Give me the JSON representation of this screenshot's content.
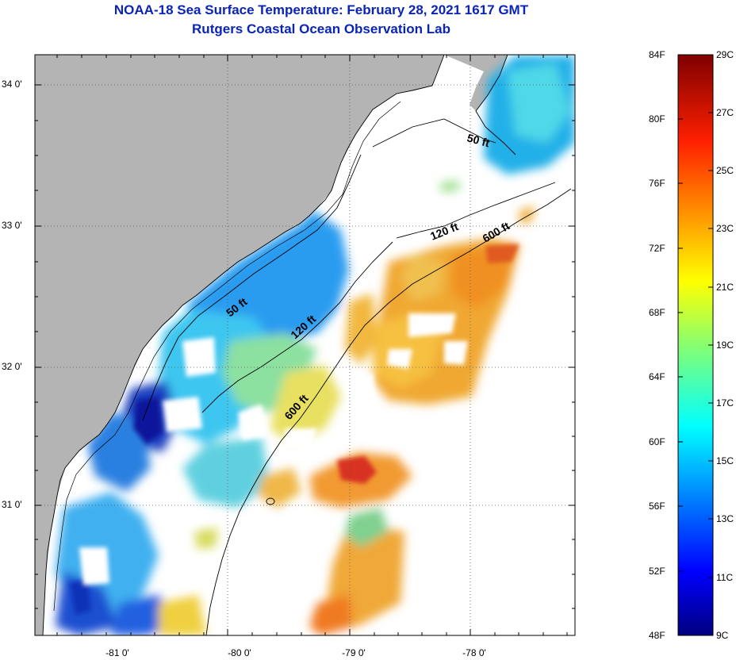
{
  "header": {
    "title": "NOAA-18 Sea Surface Temperature:  February 28, 2021 1617 GMT",
    "subtitle": "Rutgers Coastal Ocean Observation Lab"
  },
  "map": {
    "lat_labels": [
      "34 0'",
      "33 0'",
      "32 0'",
      "31 0'"
    ],
    "lon_labels": [
      "-81 0'",
      "-80 0'",
      "-79 0'",
      "-78 0'"
    ],
    "isobath_labels": [
      "50 ft",
      "50 ft",
      "120 ft",
      "120 ft",
      "600 ft",
      "600 ft"
    ]
  },
  "colorbar": {
    "fahrenheit_labels": [
      "84F",
      "80F",
      "76F",
      "72F",
      "68F",
      "64F",
      "60F",
      "56F",
      "52F",
      "48F"
    ],
    "celsius_labels": [
      "29C",
      "27C",
      "25C",
      "23C",
      "21C",
      "19C",
      "17C",
      "15C",
      "13C",
      "11C",
      "9C"
    ]
  },
  "colors": {
    "title": "#0b24b8",
    "land": "#b4b4b4",
    "ocean_nodata": "#ffffff"
  }
}
